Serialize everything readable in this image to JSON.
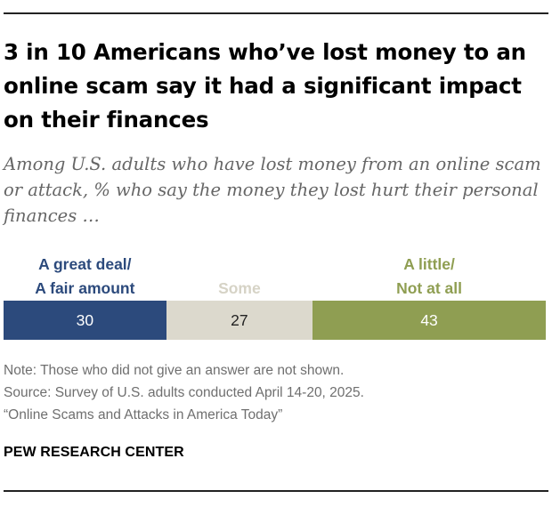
{
  "title": "3 in 10 Americans who’ve lost money to an online scam say it had a significant impact on their finances",
  "subtitle": "Among U.S. adults who have lost money from an online scam or attack, % who say the money they lost hurt their personal finances …",
  "notes": {
    "note": "Note: Those who did not give an answer are not shown.",
    "source": "Source: Survey of U.S. adults conducted April 14-20, 2025.",
    "report": "“Online Scams and Attacks in America Today”"
  },
  "brand": "PEW RESEARCH CENTER",
  "chart_data": {
    "type": "bar",
    "orientation": "horizontal-stacked",
    "categories": [
      "A great deal/\nA fair amount",
      "Some",
      "A little/\nNot at all"
    ],
    "values": [
      30,
      27,
      43
    ],
    "colors": [
      "#2c4a7c",
      "#dcd9cd",
      "#8f9e52"
    ],
    "label_colors": [
      "#2c4a7c",
      "#d6d3c6",
      "#8f9e52"
    ],
    "value_text_colors": [
      "#ffffff",
      "#222222",
      "#ffffff"
    ],
    "xlim": [
      0,
      100
    ],
    "grid": false,
    "legend": "above-segments"
  }
}
